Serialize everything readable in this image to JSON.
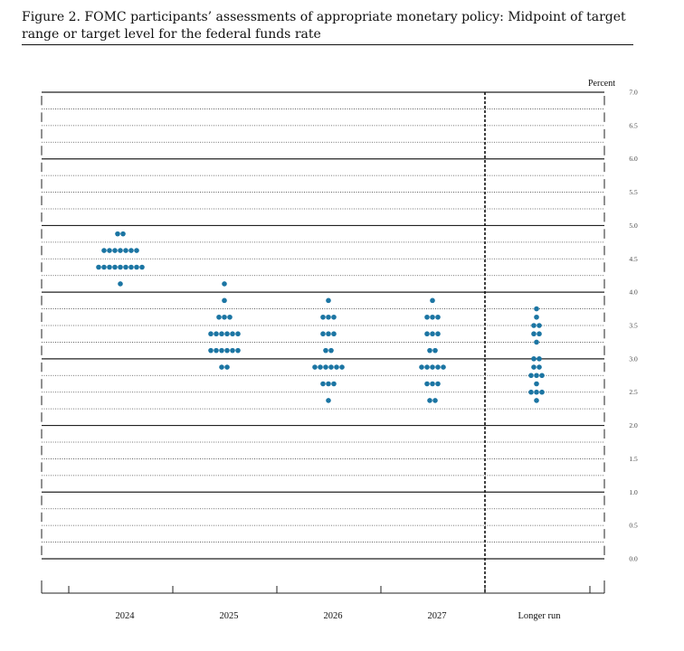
{
  "figure": {
    "title": "Figure 2.  FOMC participants’ assessments of appropriate monetary policy:  Midpoint of target range or target level for the federal funds rate"
  },
  "chart_data": {
    "type": "scatter",
    "subtype": "dot plot",
    "unit_label": "Percent",
    "ylim": [
      0,
      7
    ],
    "y_ticks": [
      "7.0",
      "6.5",
      "6.0",
      "5.5",
      "5.0",
      "4.5",
      "4.0",
      "3.5",
      "3.0",
      "2.5",
      "2.0",
      "1.5",
      "1.0",
      "0.5",
      "0.0"
    ],
    "categories": [
      "2024",
      "2025",
      "2026",
      "2027",
      "Longer run"
    ],
    "dot_color": "#1b75a3",
    "columns": [
      {
        "category": "2024",
        "dots": [
          {
            "y": 4.875,
            "count": 2
          },
          {
            "y": 4.625,
            "count": 7
          },
          {
            "y": 4.375,
            "count": 9
          },
          {
            "y": 4.125,
            "count": 1
          }
        ]
      },
      {
        "category": "2025",
        "dots": [
          {
            "y": 4.125,
            "count": 1
          },
          {
            "y": 3.875,
            "count": 1
          },
          {
            "y": 3.625,
            "count": 3
          },
          {
            "y": 3.375,
            "count": 6
          },
          {
            "y": 3.125,
            "count": 6
          },
          {
            "y": 2.875,
            "count": 2
          }
        ]
      },
      {
        "category": "2026",
        "dots": [
          {
            "y": 3.875,
            "count": 1
          },
          {
            "y": 3.625,
            "count": 3
          },
          {
            "y": 3.375,
            "count": 3
          },
          {
            "y": 3.125,
            "count": 2
          },
          {
            "y": 2.875,
            "count": 6
          },
          {
            "y": 2.625,
            "count": 3
          },
          {
            "y": 2.375,
            "count": 1
          }
        ]
      },
      {
        "category": "2027",
        "dots": [
          {
            "y": 3.875,
            "count": 1
          },
          {
            "y": 3.625,
            "count": 3
          },
          {
            "y": 3.375,
            "count": 3
          },
          {
            "y": 3.125,
            "count": 2
          },
          {
            "y": 2.875,
            "count": 5
          },
          {
            "y": 2.625,
            "count": 3
          },
          {
            "y": 2.375,
            "count": 2
          }
        ]
      },
      {
        "category": "Longer run",
        "dots": [
          {
            "y": 3.75,
            "count": 1
          },
          {
            "y": 3.625,
            "count": 1
          },
          {
            "y": 3.5,
            "count": 2
          },
          {
            "y": 3.375,
            "count": 2
          },
          {
            "y": 3.25,
            "count": 1
          },
          {
            "y": 3.0,
            "count": 2
          },
          {
            "y": 2.875,
            "count": 2
          },
          {
            "y": 2.75,
            "count": 3
          },
          {
            "y": 2.625,
            "count": 1
          },
          {
            "y": 2.5,
            "count": 3
          },
          {
            "y": 2.375,
            "count": 1
          }
        ]
      }
    ]
  }
}
